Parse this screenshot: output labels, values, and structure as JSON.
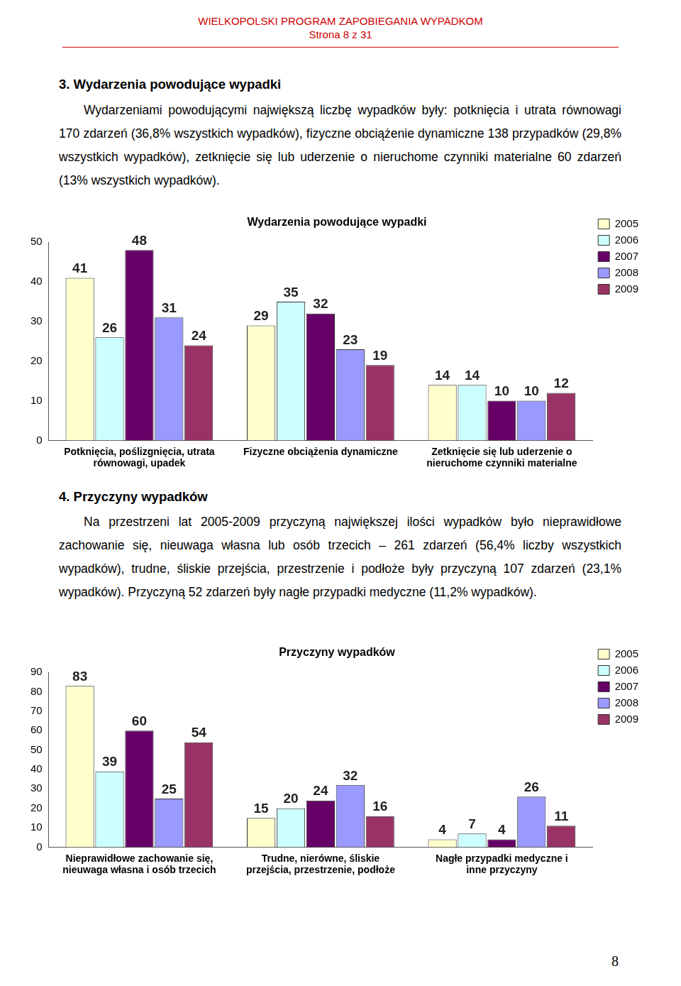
{
  "header": {
    "title": "WIELKOPOLSKI PROGRAM ZAPOBIEGANIA WYPADKOM",
    "page": "Strona 8 z 31"
  },
  "sections": [
    {
      "heading": "3. Wydarzenia powodujące wypadki",
      "text": "Wydarzeniami powodującymi największą liczbę wypadków były: potknięcia i utrata równowagi 170 zdarzeń (36,8% wszystkich wypadków), fizyczne obciążenie dynamiczne 138 przypadków (29,8% wszystkich wypadków), zetknięcie się lub uderzenie o nieruchome czynniki materialne 60 zdarzeń (13% wszystkich wypadków)."
    },
    {
      "heading": "4. Przyczyny wypadków",
      "text": "Na przestrzeni lat 2005-2009 przyczyną największej ilości wypadków było nieprawidłowe zachowanie się, nieuwaga własna lub osób trzecich – 261 zdarzeń (56,4% liczby wszystkich wypadków), trudne, śliskie przejścia, przestrzenie i podłoże były przyczyną 107 zdarzeń (23,1% wypadków). Przyczyną 52 zdarzeń były nagłe przypadki medyczne (11,2% wypadków)."
    }
  ],
  "chart_data": [
    {
      "type": "bar",
      "title": "Wydarzenia powodujące wypadki",
      "categories": [
        [
          "Potknięcia, poślizgnięcia, utrata",
          "równowagi, upadek"
        ],
        [
          "Fizyczne obciążenia dynamiczne"
        ],
        [
          "Zetknięcie się lub uderzenie o",
          "nieruchome czynniki materialne"
        ]
      ],
      "series": [
        {
          "name": "2005",
          "color": "#ffffcc",
          "values": [
            41,
            29,
            14
          ]
        },
        {
          "name": "2006",
          "color": "#ccffff",
          "values": [
            26,
            35,
            14
          ]
        },
        {
          "name": "2007",
          "color": "#660066",
          "values": [
            48,
            32,
            10
          ]
        },
        {
          "name": "2008",
          "color": "#9999ff",
          "values": [
            31,
            23,
            10
          ]
        },
        {
          "name": "2009",
          "color": "#993366",
          "values": [
            24,
            19,
            12
          ]
        }
      ],
      "ylim": [
        0,
        50
      ],
      "yticks": [
        0,
        10,
        20,
        30,
        40,
        50
      ],
      "grid": false,
      "legend": "right",
      "data_labels": true
    },
    {
      "type": "bar",
      "title": "Przyczyny wypadków",
      "categories": [
        [
          "Nieprawidłowe zachowanie się,",
          "nieuwaga własna i osób trzecich"
        ],
        [
          "Trudne, nierówne, śliskie",
          "przejścia, przestrzenie, podłoże"
        ],
        [
          "Nagłe przypadki medyczne i",
          "inne przyczyny"
        ]
      ],
      "series": [
        {
          "name": "2005",
          "color": "#ffffcc",
          "values": [
            83,
            15,
            4
          ]
        },
        {
          "name": "2006",
          "color": "#ccffff",
          "values": [
            39,
            20,
            7
          ]
        },
        {
          "name": "2007",
          "color": "#660066",
          "values": [
            60,
            24,
            4
          ]
        },
        {
          "name": "2008",
          "color": "#9999ff",
          "values": [
            25,
            32,
            26
          ]
        },
        {
          "name": "2009",
          "color": "#993366",
          "values": [
            54,
            16,
            11
          ]
        }
      ],
      "ylim": [
        0,
        90
      ],
      "yticks": [
        0,
        10,
        20,
        30,
        40,
        50,
        60,
        70,
        80,
        90
      ],
      "grid": false,
      "legend": "right",
      "data_labels": true
    }
  ],
  "footer": {
    "page_number": "8"
  }
}
